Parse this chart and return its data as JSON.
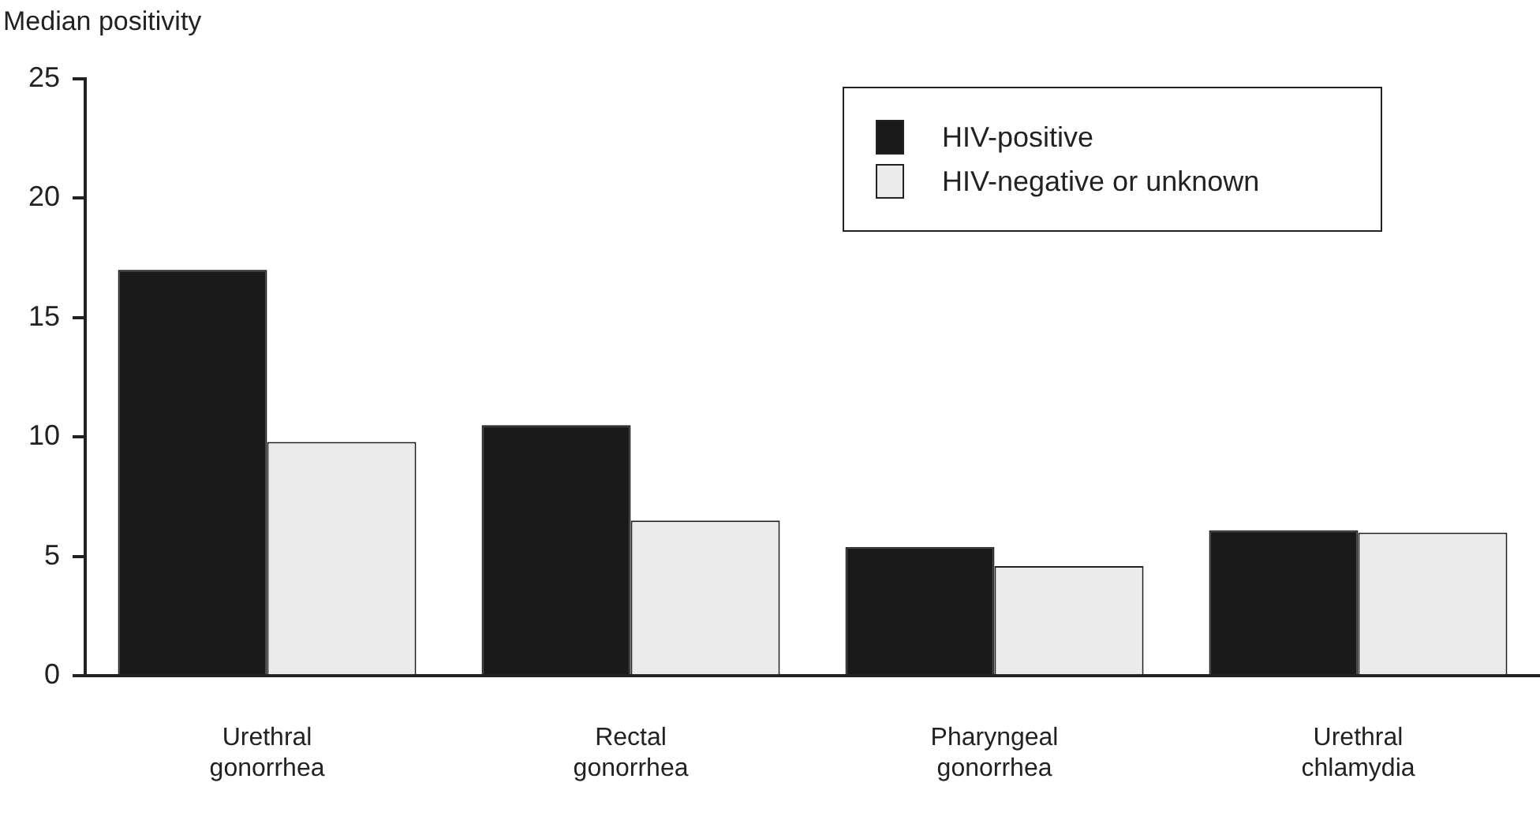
{
  "chart_data": {
    "type": "bar",
    "ylabel": "Median positivity",
    "categories": [
      "Urethral gonorrhea",
      "Rectal gonorrhea",
      "Pharyngeal gonorrhea",
      "Urethral chlamydia"
    ],
    "series": [
      {
        "name": "HIV-positive",
        "color": "#1a1a1a",
        "values": [
          17.0,
          10.5,
          5.4,
          6.1
        ]
      },
      {
        "name": "HIV-negative or unknown",
        "color": "#ebebeb",
        "values": [
          9.8,
          6.5,
          4.6,
          6.0
        ]
      }
    ],
    "ylim": [
      0,
      25
    ],
    "yticks": [
      0,
      5,
      10,
      15,
      20,
      25
    ],
    "grid": false,
    "legend": "top right"
  }
}
